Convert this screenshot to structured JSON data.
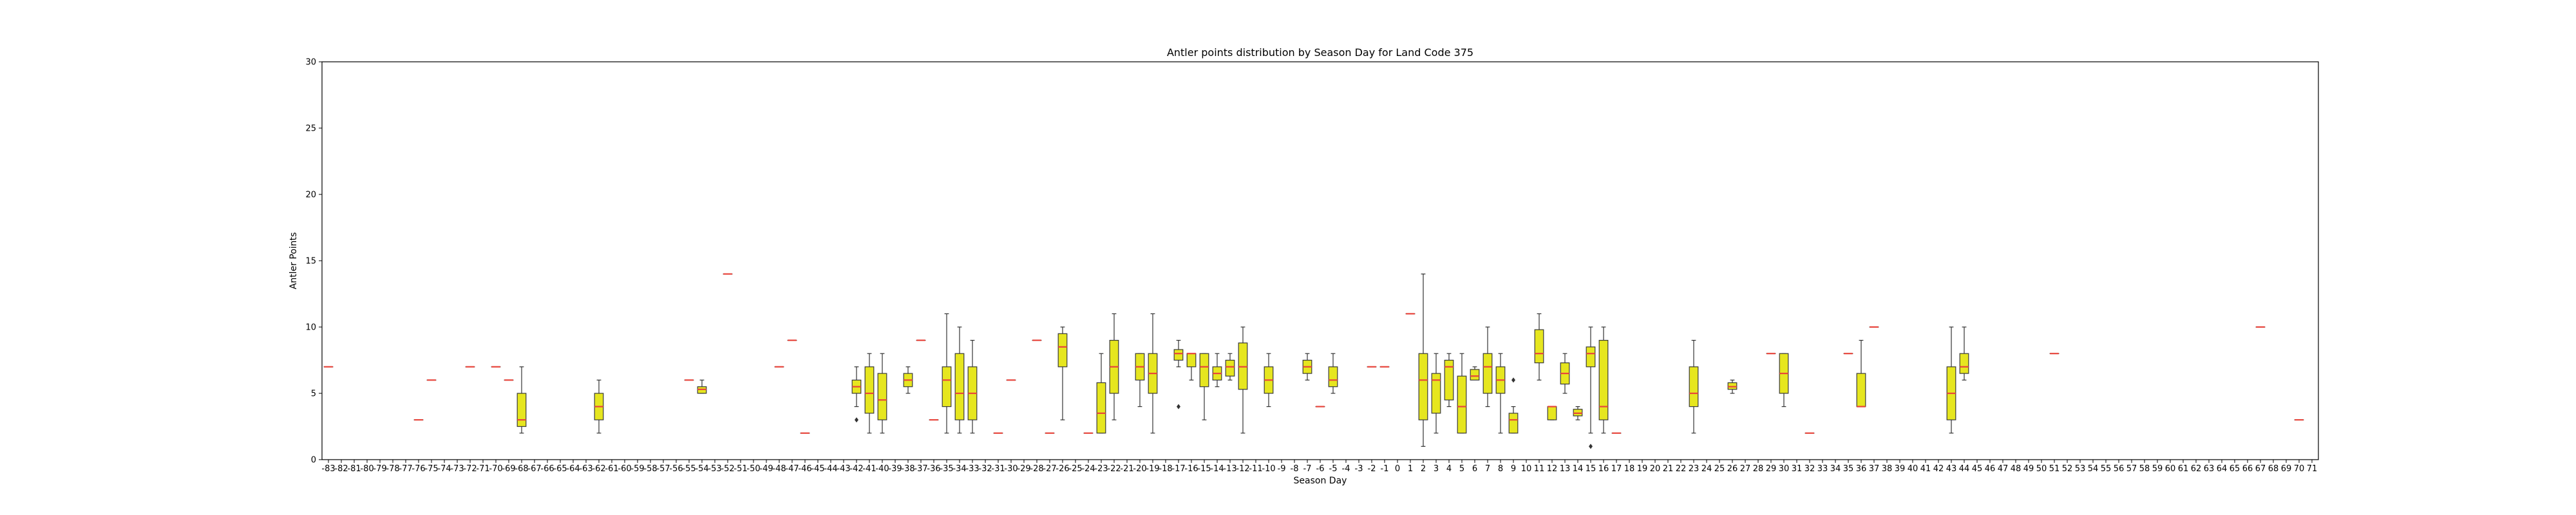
{
  "chart_data": {
    "type": "box",
    "title": "Antler points distribution by Season Day for Land Code 375",
    "xlabel": "Season Day",
    "ylabel": "Antler Points",
    "ylim": [
      0,
      30
    ],
    "yticks": [
      0,
      5,
      10,
      15,
      20,
      25,
      30
    ],
    "categories": [
      -83,
      -82,
      -81,
      -80,
      -79,
      -78,
      -77,
      -76,
      -75,
      -74,
      -73,
      -72,
      -71,
      -70,
      -69,
      -68,
      -67,
      -66,
      -65,
      -64,
      -63,
      -62,
      -61,
      -60,
      -59,
      -58,
      -57,
      -56,
      -55,
      -54,
      -53,
      -52,
      -51,
      -50,
      -49,
      -48,
      -47,
      -46,
      -45,
      -44,
      -43,
      -42,
      -41,
      -40,
      -39,
      -38,
      -37,
      -36,
      -35,
      -34,
      -33,
      -32,
      -31,
      -30,
      -29,
      -28,
      -27,
      -26,
      -25,
      -24,
      -23,
      -22,
      -21,
      -20,
      -19,
      -18,
      -17,
      -16,
      -15,
      -14,
      -13,
      -12,
      -11,
      -10,
      -9,
      -8,
      -7,
      -6,
      -5,
      -4,
      -3,
      -2,
      -1,
      0,
      1,
      2,
      3,
      4,
      5,
      6,
      7,
      8,
      9,
      10,
      11,
      12,
      13,
      14,
      15,
      16,
      17,
      18,
      19,
      20,
      21,
      22,
      23,
      24,
      25,
      26,
      27,
      28,
      29,
      30,
      31,
      32,
      33,
      34,
      35,
      36,
      37,
      38,
      39,
      40,
      41,
      42,
      43,
      44,
      45,
      46,
      47,
      48,
      49,
      50,
      51,
      52,
      53,
      54,
      55,
      56,
      57,
      58,
      59,
      60,
      61,
      62,
      63,
      64,
      65,
      66,
      67,
      68,
      69,
      70,
      71
    ],
    "boxes": [
      {
        "x": -83,
        "whislo": 7,
        "q1": 7,
        "med": 7,
        "q3": 7,
        "whishi": 7
      },
      {
        "x": -76,
        "whislo": 3,
        "q1": 3,
        "med": 3,
        "q3": 3,
        "whishi": 3
      },
      {
        "x": -75,
        "whislo": 6,
        "q1": 6,
        "med": 6,
        "q3": 6,
        "whishi": 6
      },
      {
        "x": -72,
        "whislo": 7,
        "q1": 7,
        "med": 7,
        "q3": 7,
        "whishi": 7
      },
      {
        "x": -70,
        "whislo": 7,
        "q1": 7,
        "med": 7,
        "q3": 7,
        "whishi": 7
      },
      {
        "x": -69,
        "whislo": 6,
        "q1": 6,
        "med": 6,
        "q3": 6,
        "whishi": 6
      },
      {
        "x": -68,
        "whislo": 2,
        "q1": 2.5,
        "med": 3,
        "q3": 5,
        "whishi": 7
      },
      {
        "x": -62,
        "whislo": 2,
        "q1": 3,
        "med": 4,
        "q3": 5,
        "whishi": 6
      },
      {
        "x": -55,
        "whislo": 6,
        "q1": 6,
        "med": 6,
        "q3": 6,
        "whishi": 6
      },
      {
        "x": -54,
        "whislo": 5,
        "q1": 5,
        "med": 5.3,
        "q3": 5.5,
        "whishi": 6
      },
      {
        "x": -52,
        "whislo": 14,
        "q1": 14,
        "med": 14,
        "q3": 14,
        "whishi": 14
      },
      {
        "x": -48,
        "whislo": 7,
        "q1": 7,
        "med": 7,
        "q3": 7,
        "whishi": 7
      },
      {
        "x": -47,
        "whislo": 9,
        "q1": 9,
        "med": 9,
        "q3": 9,
        "whishi": 9
      },
      {
        "x": -46,
        "whislo": 2,
        "q1": 2,
        "med": 2,
        "q3": 2,
        "whishi": 2
      },
      {
        "x": -42,
        "whislo": 4,
        "q1": 5,
        "med": 5.5,
        "q3": 6,
        "whishi": 7,
        "fliers": [
          3
        ]
      },
      {
        "x": -41,
        "whislo": 2,
        "q1": 3.5,
        "med": 5,
        "q3": 7,
        "whishi": 8
      },
      {
        "x": -40,
        "whislo": 2,
        "q1": 3,
        "med": 4.5,
        "q3": 6.5,
        "whishi": 8
      },
      {
        "x": -38,
        "whislo": 5,
        "q1": 5.5,
        "med": 6,
        "q3": 6.5,
        "whishi": 7
      },
      {
        "x": -37,
        "whislo": 9,
        "q1": 9,
        "med": 9,
        "q3": 9,
        "whishi": 9
      },
      {
        "x": -36,
        "whislo": 3,
        "q1": 3,
        "med": 3,
        "q3": 3,
        "whishi": 3
      },
      {
        "x": -35,
        "whislo": 2,
        "q1": 4,
        "med": 6,
        "q3": 7,
        "whishi": 11
      },
      {
        "x": -34,
        "whislo": 2,
        "q1": 3,
        "med": 5,
        "q3": 8,
        "whishi": 10
      },
      {
        "x": -33,
        "whislo": 2,
        "q1": 3,
        "med": 5,
        "q3": 7,
        "whishi": 9
      },
      {
        "x": -31,
        "whislo": 2,
        "q1": 2,
        "med": 2,
        "q3": 2,
        "whishi": 2
      },
      {
        "x": -30,
        "whislo": 6,
        "q1": 6,
        "med": 6,
        "q3": 6,
        "whishi": 6
      },
      {
        "x": -28,
        "whislo": 9,
        "q1": 9,
        "med": 9,
        "q3": 9,
        "whishi": 9
      },
      {
        "x": -27,
        "whislo": 2,
        "q1": 2,
        "med": 2,
        "q3": 2,
        "whishi": 2
      },
      {
        "x": -26,
        "whislo": 3,
        "q1": 7,
        "med": 8.5,
        "q3": 9.5,
        "whishi": 10
      },
      {
        "x": -24,
        "whislo": 2,
        "q1": 2,
        "med": 2,
        "q3": 2,
        "whishi": 2
      },
      {
        "x": -23,
        "whislo": 2,
        "q1": 2,
        "med": 3.5,
        "q3": 5.8,
        "whishi": 8
      },
      {
        "x": -22,
        "whislo": 3,
        "q1": 5,
        "med": 7,
        "q3": 9,
        "whishi": 11
      },
      {
        "x": -20,
        "whislo": 4,
        "q1": 6,
        "med": 7,
        "q3": 8,
        "whishi": 8
      },
      {
        "x": -19,
        "whislo": 2,
        "q1": 5,
        "med": 6.5,
        "q3": 8,
        "whishi": 11
      },
      {
        "x": -17,
        "whislo": 7,
        "q1": 7.5,
        "med": 8,
        "q3": 8.3,
        "whishi": 9,
        "fliers": [
          4
        ]
      },
      {
        "x": -16,
        "whislo": 6,
        "q1": 7,
        "med": 8,
        "q3": 8,
        "whishi": 8
      },
      {
        "x": -15,
        "whislo": 3,
        "q1": 5.5,
        "med": 7,
        "q3": 8,
        "whishi": 8
      },
      {
        "x": -14,
        "whislo": 5.5,
        "q1": 6,
        "med": 6.5,
        "q3": 7,
        "whishi": 8
      },
      {
        "x": -13,
        "whislo": 6,
        "q1": 6.3,
        "med": 7,
        "q3": 7.5,
        "whishi": 8
      },
      {
        "x": -12,
        "whislo": 2,
        "q1": 5.3,
        "med": 7,
        "q3": 8.8,
        "whishi": 10
      },
      {
        "x": -10,
        "whislo": 4,
        "q1": 5,
        "med": 6,
        "q3": 7,
        "whishi": 8
      },
      {
        "x": -7,
        "whislo": 6,
        "q1": 6.5,
        "med": 7,
        "q3": 7.5,
        "whishi": 8
      },
      {
        "x": -6,
        "whislo": 4,
        "q1": 4,
        "med": 4,
        "q3": 4,
        "whishi": 4
      },
      {
        "x": -5,
        "whislo": 5,
        "q1": 5.5,
        "med": 6,
        "q3": 7,
        "whishi": 8
      },
      {
        "x": -2,
        "whislo": 7,
        "q1": 7,
        "med": 7,
        "q3": 7,
        "whishi": 7
      },
      {
        "x": -1,
        "whislo": 7,
        "q1": 7,
        "med": 7,
        "q3": 7,
        "whishi": 7
      },
      {
        "x": 1,
        "whislo": 11,
        "q1": 11,
        "med": 11,
        "q3": 11,
        "whishi": 11
      },
      {
        "x": 2,
        "whislo": 1,
        "q1": 3,
        "med": 6,
        "q3": 8,
        "whishi": 14
      },
      {
        "x": 3,
        "whislo": 2,
        "q1": 3.5,
        "med": 6,
        "q3": 6.5,
        "whishi": 8
      },
      {
        "x": 4,
        "whislo": 4,
        "q1": 4.5,
        "med": 7,
        "q3": 7.5,
        "whishi": 8
      },
      {
        "x": 5,
        "whislo": 2,
        "q1": 2,
        "med": 4,
        "q3": 6.3,
        "whishi": 8
      },
      {
        "x": 6,
        "whislo": 6,
        "q1": 6,
        "med": 6.3,
        "q3": 6.8,
        "whishi": 7
      },
      {
        "x": 7,
        "whislo": 4,
        "q1": 5,
        "med": 7,
        "q3": 8,
        "whishi": 10
      },
      {
        "x": 8,
        "whislo": 2,
        "q1": 5,
        "med": 6,
        "q3": 7,
        "whishi": 8
      },
      {
        "x": 9,
        "whislo": 2,
        "q1": 2,
        "med": 3,
        "q3": 3.5,
        "whishi": 4,
        "fliers": [
          6
        ]
      },
      {
        "x": 11,
        "whislo": 6,
        "q1": 7.3,
        "med": 8,
        "q3": 9.8,
        "whishi": 11
      },
      {
        "x": 12,
        "whislo": 3,
        "q1": 3,
        "med": 4,
        "q3": 4,
        "whishi": 4
      },
      {
        "x": 13,
        "whislo": 5,
        "q1": 5.7,
        "med": 6.5,
        "q3": 7.3,
        "whishi": 8
      },
      {
        "x": 14,
        "whislo": 3,
        "q1": 3.3,
        "med": 3.5,
        "q3": 3.8,
        "whishi": 4
      },
      {
        "x": 15,
        "whislo": 2,
        "q1": 7,
        "med": 8,
        "q3": 8.5,
        "whishi": 10,
        "fliers": [
          1
        ]
      },
      {
        "x": 16,
        "whislo": 2,
        "q1": 3,
        "med": 4,
        "q3": 9,
        "whishi": 10
      },
      {
        "x": 17,
        "whislo": 2,
        "q1": 2,
        "med": 2,
        "q3": 2,
        "whishi": 2
      },
      {
        "x": 23,
        "whislo": 2,
        "q1": 4,
        "med": 5,
        "q3": 7,
        "whishi": 9
      },
      {
        "x": 26,
        "whislo": 5,
        "q1": 5.3,
        "med": 5.5,
        "q3": 5.8,
        "whishi": 6
      },
      {
        "x": 29,
        "whislo": 8,
        "q1": 8,
        "med": 8,
        "q3": 8,
        "whishi": 8
      },
      {
        "x": 30,
        "whislo": 4,
        "q1": 5,
        "med": 6.5,
        "q3": 8,
        "whishi": 8
      },
      {
        "x": 32,
        "whislo": 2,
        "q1": 2,
        "med": 2,
        "q3": 2,
        "whishi": 2
      },
      {
        "x": 35,
        "whislo": 8,
        "q1": 8,
        "med": 8,
        "q3": 8,
        "whishi": 8
      },
      {
        "x": 36,
        "whislo": 4,
        "q1": 4,
        "med": 4,
        "q3": 6.5,
        "whishi": 9
      },
      {
        "x": 37,
        "whislo": 10,
        "q1": 10,
        "med": 10,
        "q3": 10,
        "whishi": 10
      },
      {
        "x": 43,
        "whislo": 2,
        "q1": 3,
        "med": 5,
        "q3": 7,
        "whishi": 10
      },
      {
        "x": 44,
        "whislo": 6,
        "q1": 6.5,
        "med": 7,
        "q3": 8,
        "whishi": 10
      },
      {
        "x": 51,
        "whislo": 8,
        "q1": 8,
        "med": 8,
        "q3": 8,
        "whishi": 8
      },
      {
        "x": 67,
        "whislo": 10,
        "q1": 10,
        "med": 10,
        "q3": 10,
        "whishi": 10
      },
      {
        "x": 70,
        "whislo": 3,
        "q1": 3,
        "med": 3,
        "q3": 3,
        "whishi": 3
      }
    ],
    "colors": {
      "box_fill": "#e6e61f",
      "box_edge": "#3a3a3a",
      "median": "#e8453c",
      "whisker": "#333333",
      "flier": "#333333",
      "axis": "#000000",
      "background": "#ffffff"
    },
    "grid": false
  }
}
